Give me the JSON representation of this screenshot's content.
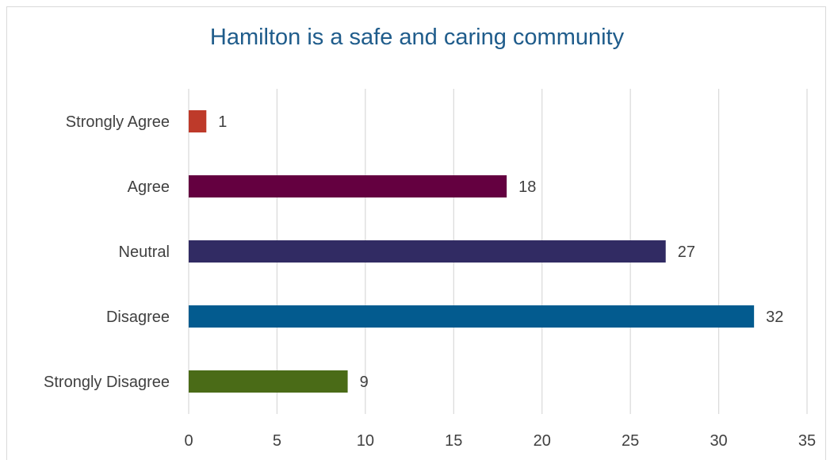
{
  "chart_data": {
    "type": "bar",
    "orientation": "horizontal",
    "title": "Hamilton is a safe and caring community",
    "xlabel": "",
    "ylabel": "",
    "categories": [
      "Strongly Agree",
      "Agree",
      "Neutral",
      "Disagree",
      "Strongly Disagree"
    ],
    "values": [
      1,
      18,
      27,
      32,
      9
    ],
    "colors": [
      "#be3a2a",
      "#640040",
      "#312b63",
      "#035b8f",
      "#4a6b17"
    ],
    "xlim": [
      0,
      35
    ],
    "xticks": [
      0,
      5,
      10,
      15,
      20,
      25,
      30,
      35
    ],
    "grid": true,
    "legend": "none",
    "data_labels": true,
    "title_color": "#1f5c8b",
    "gridline_color": "#d9d9d9",
    "text_color": "#404040"
  }
}
